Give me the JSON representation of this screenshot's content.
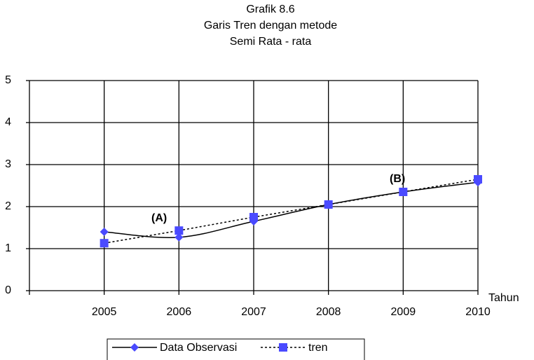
{
  "chart_data": {
    "type": "line",
    "title_lines": [
      "Grafik 8.6",
      "Garis Tren dengan metode",
      "Semi Rata - rata"
    ],
    "x_label": "Tahun",
    "x": [
      2005,
      2006,
      2007,
      2008,
      2009,
      2010
    ],
    "series": [
      {
        "name": "Data Observasi",
        "color": "#4a4aff",
        "values": [
          1.4,
          1.27,
          1.65,
          2.05,
          2.35,
          2.58
        ]
      },
      {
        "name": "tren",
        "color": "#4a4aff",
        "values": [
          1.13,
          1.43,
          1.75,
          2.05,
          2.35,
          2.65
        ]
      }
    ],
    "annotations": [
      "(A)",
      "(B)"
    ],
    "xlim": [
      2004,
      2010
    ],
    "xticks": [
      2005,
      2006,
      2007,
      2008,
      2009,
      2010
    ],
    "ylim": [
      0,
      5
    ],
    "yticks": [
      0,
      1,
      2,
      3,
      4,
      5
    ],
    "grid": true
  }
}
